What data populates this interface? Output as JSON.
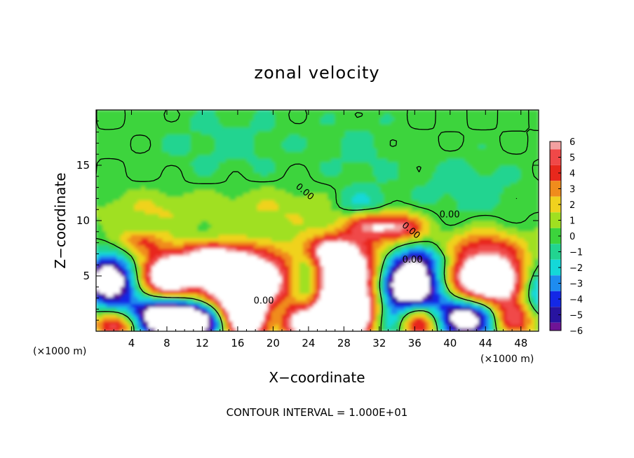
{
  "chart_data": {
    "type": "heatmap",
    "title": "zonal velocity",
    "xlabel": "X−coordinate",
    "ylabel": "Z−coordinate",
    "x_unit_left": "(×1000 m)",
    "x_unit_right": "(×1000 m)",
    "footer": "CONTOUR INTERVAL = 1.000E+01",
    "xlim": [
      0,
      50
    ],
    "ylim": [
      0,
      20
    ],
    "x_ticks": [
      4,
      8,
      12,
      16,
      20,
      24,
      28,
      32,
      36,
      40,
      44,
      48
    ],
    "y_ticks": [
      5,
      10,
      15
    ],
    "colorbar": {
      "range": [
        -6,
        6
      ],
      "labels": [
        "6",
        "5",
        "4",
        "3",
        "2",
        "1",
        "0",
        "−1",
        "−2",
        "−3",
        "−4",
        "−5",
        "−6"
      ],
      "bands": [
        {
          "lo": 5.5,
          "hi": 6.0,
          "color": "#f2a0a0"
        },
        {
          "lo": 4.5,
          "hi": 5.5,
          "color": "#f04848"
        },
        {
          "lo": 3.5,
          "hi": 4.5,
          "color": "#e8281c"
        },
        {
          "lo": 2.5,
          "hi": 3.5,
          "color": "#f08c1c"
        },
        {
          "lo": 1.5,
          "hi": 2.5,
          "color": "#f0d21e"
        },
        {
          "lo": 0.5,
          "hi": 1.5,
          "color": "#a0e020"
        },
        {
          "lo": -0.5,
          "hi": 0.5,
          "color": "#3cd43c"
        },
        {
          "lo": -1.5,
          "hi": -0.5,
          "color": "#22d490"
        },
        {
          "lo": -2.5,
          "hi": -1.5,
          "color": "#14d8d8"
        },
        {
          "lo": -3.5,
          "hi": -2.5,
          "color": "#1e8cf0"
        },
        {
          "lo": -4.5,
          "hi": -3.5,
          "color": "#1428e6"
        },
        {
          "lo": -5.5,
          "hi": -4.5,
          "color": "#2814a0"
        },
        {
          "lo": -6.0,
          "hi": -5.5,
          "color": "#6e1496"
        }
      ]
    },
    "saturated_color": "#ffffff",
    "contour_labels": [
      "0.00",
      "0.00",
      "0.00",
      "0.00",
      "0.00"
    ],
    "features": [
      {
        "x": 1.5,
        "z": 4.6,
        "value": -9,
        "sx": 2.0,
        "sz": 1.4
      },
      {
        "x": 8.0,
        "z": 4.8,
        "value": 9,
        "sx": 2.2,
        "sz": 1.6
      },
      {
        "x": 16.5,
        "z": 4.6,
        "value": 11,
        "sx": 3.8,
        "sz": 1.8
      },
      {
        "x": 24.0,
        "z": 4.6,
        "value": -6,
        "sx": 1.5,
        "sz": 1.8
      },
      {
        "x": 28.0,
        "z": 5.0,
        "value": 11,
        "sx": 3.2,
        "sz": 2.2
      },
      {
        "x": 35.5,
        "z": 4.2,
        "value": -11,
        "sx": 2.8,
        "sz": 1.8
      },
      {
        "x": 44.0,
        "z": 4.5,
        "value": 11,
        "sx": 3.5,
        "sz": 2.0
      },
      {
        "x": 50.0,
        "z": 3.8,
        "value": -5,
        "sx": 1.5,
        "sz": 1.6
      },
      {
        "x": 2.5,
        "z": 0.6,
        "value": 6,
        "sx": 2.0,
        "sz": 0.9
      },
      {
        "x": 8.0,
        "z": 1.4,
        "value": -11,
        "sx": 3.0,
        "sz": 1.4
      },
      {
        "x": 13.0,
        "z": 1.0,
        "value": -8,
        "sx": 2.0,
        "sz": 1.2
      },
      {
        "x": 16.8,
        "z": 1.3,
        "value": 11,
        "sx": 2.8,
        "sz": 1.4
      },
      {
        "x": 20.0,
        "z": 1.5,
        "value": -5,
        "sx": 1.4,
        "sz": 1.2
      },
      {
        "x": 23.0,
        "z": 0.8,
        "value": 5,
        "sx": 1.5,
        "sz": 1.0
      },
      {
        "x": 28.5,
        "z": 1.3,
        "value": 11,
        "sx": 3.0,
        "sz": 1.4
      },
      {
        "x": 33.0,
        "z": 1.0,
        "value": -6,
        "sx": 1.8,
        "sz": 1.2
      },
      {
        "x": 36.5,
        "z": 1.0,
        "value": 8,
        "sx": 2.0,
        "sz": 1.2
      },
      {
        "x": 42.0,
        "z": 1.4,
        "value": -10,
        "sx": 3.0,
        "sz": 1.4
      },
      {
        "x": 47.0,
        "z": 1.0,
        "value": 6,
        "sx": 1.8,
        "sz": 1.1
      },
      {
        "x": 34.5,
        "z": 9.4,
        "value": 5,
        "sx": 2.0,
        "sz": 0.9
      },
      {
        "x": 31.0,
        "z": 9.6,
        "value": 4,
        "sx": 2.0,
        "sz": 0.9
      },
      {
        "x": 13.0,
        "z": 7.0,
        "value": 4,
        "sx": 3.0,
        "sz": 0.8
      },
      {
        "x": 5.0,
        "z": 8.2,
        "value": 3,
        "sx": 2.0,
        "sz": 0.7
      },
      {
        "x": 26.0,
        "z": 7.5,
        "value": 3,
        "sx": 2.5,
        "sz": 0.8
      },
      {
        "x": 37.0,
        "z": 6.5,
        "value": -2,
        "sx": 2.5,
        "sz": 0.8
      },
      {
        "x": 30.0,
        "z": 11.5,
        "value": -2,
        "sx": 2.2,
        "sz": 0.9
      },
      {
        "x": 44.0,
        "z": 8.0,
        "value": 2,
        "sx": 3.0,
        "sz": 1.0
      },
      {
        "x": 20.0,
        "z": 11.0,
        "value": 1.5,
        "sx": 6.0,
        "sz": 1.4
      },
      {
        "x": 6.0,
        "z": 11.0,
        "value": 1.5,
        "sx": 4.0,
        "sz": 1.2
      },
      {
        "x": 42.0,
        "z": 13.0,
        "value": -1,
        "sx": 4.0,
        "sz": 2.0
      },
      {
        "x": 15.0,
        "z": 17.0,
        "value": -0.7,
        "sx": 6.0,
        "sz": 2.5
      },
      {
        "x": 30.0,
        "z": 16.0,
        "value": -0.6,
        "sx": 3.0,
        "sz": 3.0
      }
    ]
  }
}
